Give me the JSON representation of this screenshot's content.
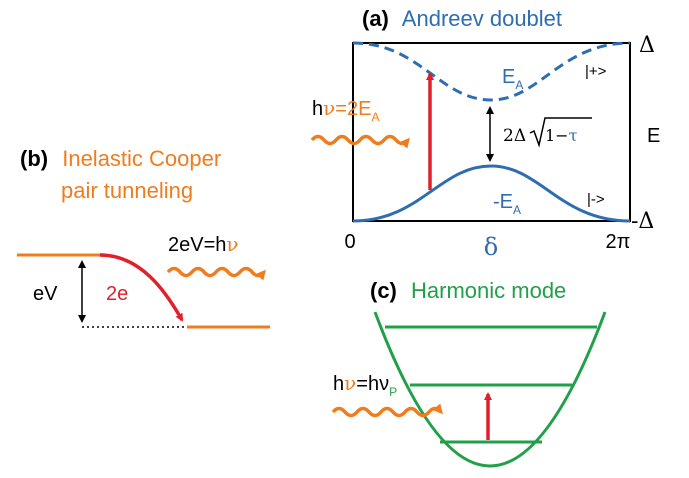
{
  "colors": {
    "orange": "#f07c1e",
    "blue": "#2e6db0",
    "red": "#e0202a",
    "green": "#21a04a",
    "black": "#000000"
  },
  "panel_a": {
    "tag": "(a)",
    "title": "Andreev doublet",
    "ea": "E",
    "ea_sub": "A",
    "neg_ea": "-E",
    "neg_ea_sub": "A",
    "ket_plus": "|+>",
    "ket_minus": "|->",
    "delta_top": "Δ",
    "delta_bottom": "-Δ",
    "e_axis": "E",
    "x_zero": "0",
    "x_two_pi": "2π",
    "x_delta": "δ",
    "photon_h": "h",
    "photon_nu": "ν",
    "photon_eq": "=2E",
    "photon_eq_sub": "A",
    "gap_prefix": "2Δ",
    "gap_one_minus": "1−",
    "gap_tau": "τ"
  },
  "panel_b": {
    "tag": "(b)",
    "title_line1": "Inelastic Cooper",
    "title_line2": "pair tunneling",
    "ev": "eV",
    "two_e": "2e",
    "photon_left": "2eV=h",
    "photon_nu": "ν"
  },
  "panel_c": {
    "tag": "(c)",
    "title": "Harmonic mode",
    "photon_h": "h",
    "photon_nu": "ν",
    "photon_eq": "=hν",
    "photon_sub": "P"
  }
}
